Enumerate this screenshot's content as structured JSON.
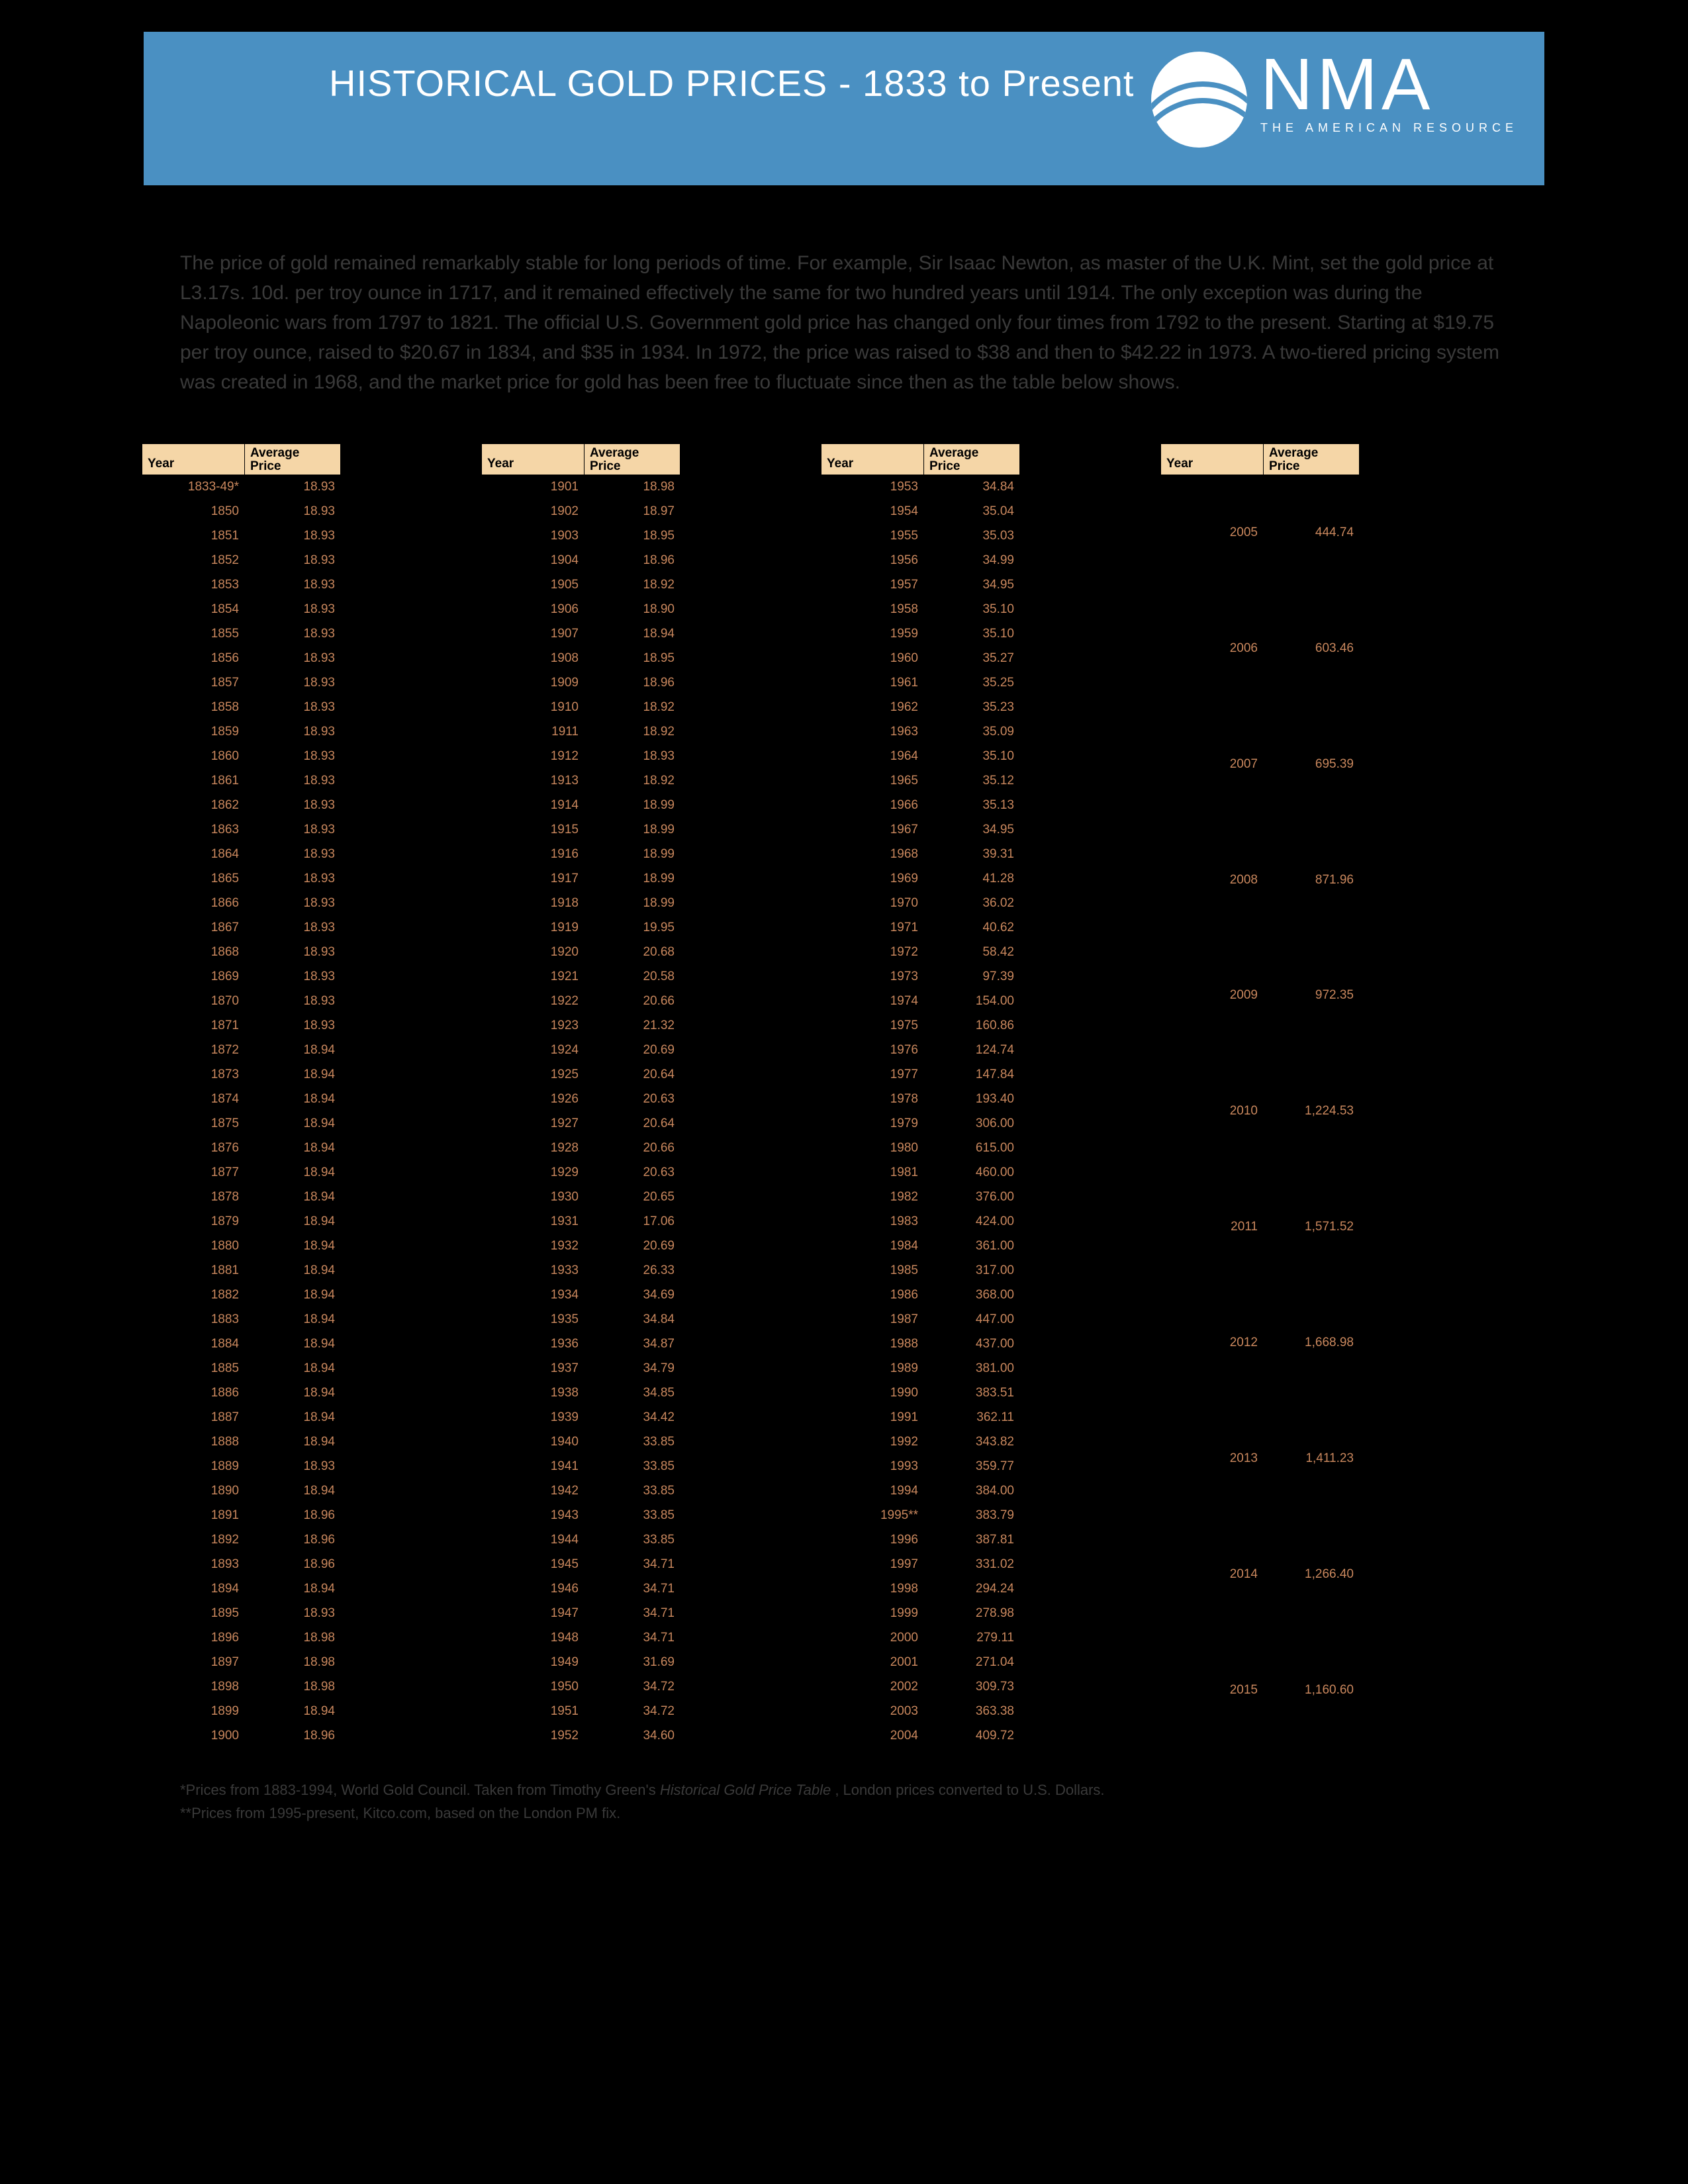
{
  "title": "HISTORICAL GOLD PRICES - 1833 to Present",
  "logo": {
    "big": "NMA",
    "small": "THE AMERICAN RESOURCE"
  },
  "intro": "The price of gold remained remarkably stable for long periods of time. For example, Sir Isaac Newton, as master of the U.K. Mint, set the gold price at L3.17s. 10d. per troy ounce in 1717, and it remained effectively the same for two hundred years until 1914. The only exception was during the Napoleonic wars from 1797 to 1821. The official U.S. Government gold price has changed only four times from 1792 to the present. Starting at $19.75 per troy ounce, raised to $20.67 in 1834, and $35 in 1934. In 1972, the price was raised to $38 and then to $42.22 in 1973. A two-tiered pricing system was created in 1968, and the market price for gold has been free to fluctuate since then as the table below shows.",
  "columns": {
    "year": "Year",
    "price": "Average\nPrice"
  },
  "footnote1_a": "*Prices from 1883-1994, World Gold Council. Taken from Timothy Green's ",
  "footnote1_i": "Historical Gold Price Table",
  "footnote1_b": " , London prices converted to U.S. Dollars.",
  "footnote2": "**Prices from 1995-present, Kitco.com, based on the London PM fix.",
  "tables": [
    [
      [
        "1833-49*",
        "18.93"
      ],
      [
        "1850",
        "18.93"
      ],
      [
        "1851",
        "18.93"
      ],
      [
        "1852",
        "18.93"
      ],
      [
        "1853",
        "18.93"
      ],
      [
        "1854",
        "18.93"
      ],
      [
        "1855",
        "18.93"
      ],
      [
        "1856",
        "18.93"
      ],
      [
        "1857",
        "18.93"
      ],
      [
        "1858",
        "18.93"
      ],
      [
        "1859",
        "18.93"
      ],
      [
        "1860",
        "18.93"
      ],
      [
        "1861",
        "18.93"
      ],
      [
        "1862",
        "18.93"
      ],
      [
        "1863",
        "18.93"
      ],
      [
        "1864",
        "18.93"
      ],
      [
        "1865",
        "18.93"
      ],
      [
        "1866",
        "18.93"
      ],
      [
        "1867",
        "18.93"
      ],
      [
        "1868",
        "18.93"
      ],
      [
        "1869",
        "18.93"
      ],
      [
        "1870",
        "18.93"
      ],
      [
        "1871",
        "18.93"
      ],
      [
        "1872",
        "18.94"
      ],
      [
        "1873",
        "18.94"
      ],
      [
        "1874",
        "18.94"
      ],
      [
        "1875",
        "18.94"
      ],
      [
        "1876",
        "18.94"
      ],
      [
        "1877",
        "18.94"
      ],
      [
        "1878",
        "18.94"
      ],
      [
        "1879",
        "18.94"
      ],
      [
        "1880",
        "18.94"
      ],
      [
        "1881",
        "18.94"
      ],
      [
        "1882",
        "18.94"
      ],
      [
        "1883",
        "18.94"
      ],
      [
        "1884",
        "18.94"
      ],
      [
        "1885",
        "18.94"
      ],
      [
        "1886",
        "18.94"
      ],
      [
        "1887",
        "18.94"
      ],
      [
        "1888",
        "18.94"
      ],
      [
        "1889",
        "18.93"
      ],
      [
        "1890",
        "18.94"
      ],
      [
        "1891",
        "18.96"
      ],
      [
        "1892",
        "18.96"
      ],
      [
        "1893",
        "18.96"
      ],
      [
        "1894",
        "18.94"
      ],
      [
        "1895",
        "18.93"
      ],
      [
        "1896",
        "18.98"
      ],
      [
        "1897",
        "18.98"
      ],
      [
        "1898",
        "18.98"
      ],
      [
        "1899",
        "18.94"
      ],
      [
        "1900",
        "18.96"
      ]
    ],
    [
      [
        "1901",
        "18.98"
      ],
      [
        "1902",
        "18.97"
      ],
      [
        "1903",
        "18.95"
      ],
      [
        "1904",
        "18.96"
      ],
      [
        "1905",
        "18.92"
      ],
      [
        "1906",
        "18.90"
      ],
      [
        "1907",
        "18.94"
      ],
      [
        "1908",
        "18.95"
      ],
      [
        "1909",
        "18.96"
      ],
      [
        "1910",
        "18.92"
      ],
      [
        "1911",
        "18.92"
      ],
      [
        "1912",
        "18.93"
      ],
      [
        "1913",
        "18.92"
      ],
      [
        "1914",
        "18.99"
      ],
      [
        "1915",
        "18.99"
      ],
      [
        "1916",
        "18.99"
      ],
      [
        "1917",
        "18.99"
      ],
      [
        "1918",
        "18.99"
      ],
      [
        "1919",
        "19.95"
      ],
      [
        "1920",
        "20.68"
      ],
      [
        "1921",
        "20.58"
      ],
      [
        "1922",
        "20.66"
      ],
      [
        "1923",
        "21.32"
      ],
      [
        "1924",
        "20.69"
      ],
      [
        "1925",
        "20.64"
      ],
      [
        "1926",
        "20.63"
      ],
      [
        "1927",
        "20.64"
      ],
      [
        "1928",
        "20.66"
      ],
      [
        "1929",
        "20.63"
      ],
      [
        "1930",
        "20.65"
      ],
      [
        "1931",
        "17.06"
      ],
      [
        "1932",
        "20.69"
      ],
      [
        "1933",
        "26.33"
      ],
      [
        "1934",
        "34.69"
      ],
      [
        "1935",
        "34.84"
      ],
      [
        "1936",
        "34.87"
      ],
      [
        "1937",
        "34.79"
      ],
      [
        "1938",
        "34.85"
      ],
      [
        "1939",
        "34.42"
      ],
      [
        "1940",
        "33.85"
      ],
      [
        "1941",
        "33.85"
      ],
      [
        "1942",
        "33.85"
      ],
      [
        "1943",
        "33.85"
      ],
      [
        "1944",
        "33.85"
      ],
      [
        "1945",
        "34.71"
      ],
      [
        "1946",
        "34.71"
      ],
      [
        "1947",
        "34.71"
      ],
      [
        "1948",
        "34.71"
      ],
      [
        "1949",
        "31.69"
      ],
      [
        "1950",
        "34.72"
      ],
      [
        "1951",
        "34.72"
      ],
      [
        "1952",
        "34.60"
      ]
    ],
    [
      [
        "1953",
        "34.84"
      ],
      [
        "1954",
        "35.04"
      ],
      [
        "1955",
        "35.03"
      ],
      [
        "1956",
        "34.99"
      ],
      [
        "1957",
        "34.95"
      ],
      [
        "1958",
        "35.10"
      ],
      [
        "1959",
        "35.10"
      ],
      [
        "1960",
        "35.27"
      ],
      [
        "1961",
        "35.25"
      ],
      [
        "1962",
        "35.23"
      ],
      [
        "1963",
        "35.09"
      ],
      [
        "1964",
        "35.10"
      ],
      [
        "1965",
        "35.12"
      ],
      [
        "1966",
        "35.13"
      ],
      [
        "1967",
        "34.95"
      ],
      [
        "1968",
        "39.31"
      ],
      [
        "1969",
        "41.28"
      ],
      [
        "1970",
        "36.02"
      ],
      [
        "1971",
        "40.62"
      ],
      [
        "1972",
        "58.42"
      ],
      [
        "1973",
        "97.39"
      ],
      [
        "1974",
        "154.00"
      ],
      [
        "1975",
        "160.86"
      ],
      [
        "1976",
        "124.74"
      ],
      [
        "1977",
        "147.84"
      ],
      [
        "1978",
        "193.40"
      ],
      [
        "1979",
        "306.00"
      ],
      [
        "1980",
        "615.00"
      ],
      [
        "1981",
        "460.00"
      ],
      [
        "1982",
        "376.00"
      ],
      [
        "1983",
        "424.00"
      ],
      [
        "1984",
        "361.00"
      ],
      [
        "1985",
        "317.00"
      ],
      [
        "1986",
        "368.00"
      ],
      [
        "1987",
        "447.00"
      ],
      [
        "1988",
        "437.00"
      ],
      [
        "1989",
        "381.00"
      ],
      [
        "1990",
        "383.51"
      ],
      [
        "1991",
        "362.11"
      ],
      [
        "1992",
        "343.82"
      ],
      [
        "1993",
        "359.77"
      ],
      [
        "1994",
        "384.00"
      ],
      [
        "1995**",
        "383.79"
      ],
      [
        "1996",
        "387.81"
      ],
      [
        "1997",
        "331.02"
      ],
      [
        "1998",
        "294.24"
      ],
      [
        "1999",
        "278.98"
      ],
      [
        "2000",
        "279.11"
      ],
      [
        "2001",
        "271.04"
      ],
      [
        "2002",
        "309.73"
      ],
      [
        "2003",
        "363.38"
      ],
      [
        "2004",
        "409.72"
      ]
    ],
    [
      [
        "2005",
        "444.74"
      ],
      [
        "2006",
        "603.46"
      ],
      [
        "2007",
        "695.39"
      ],
      [
        "2008",
        "871.96"
      ],
      [
        "2009",
        "972.35"
      ],
      [
        "2010",
        "1,224.53"
      ],
      [
        "2011",
        "1,571.52"
      ],
      [
        "2012",
        "1,668.98"
      ],
      [
        "2013",
        "1,411.23"
      ],
      [
        "2014",
        "1,266.40"
      ],
      [
        "2015",
        "1,160.60"
      ]
    ]
  ]
}
